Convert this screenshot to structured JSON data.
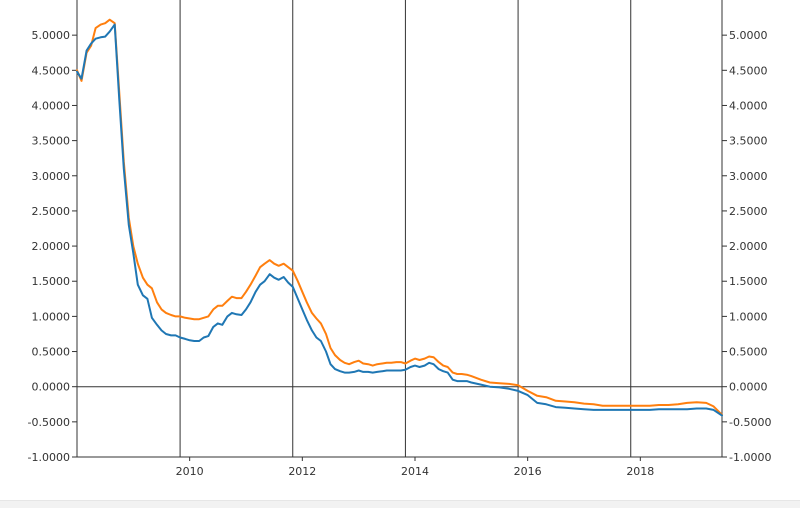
{
  "chart_data": {
    "type": "line",
    "title": "",
    "xlabel": "",
    "ylabel": "",
    "xlim": [
      2008.0,
      2019.45
    ],
    "ylim": [
      -1.0,
      5.5
    ],
    "x_ticks": [
      {
        "value": 2010,
        "label": "2010"
      },
      {
        "value": 2012,
        "label": "2012"
      },
      {
        "value": 2014,
        "label": "2014"
      },
      {
        "value": 2016,
        "label": "2016"
      },
      {
        "value": 2018,
        "label": "2018"
      }
    ],
    "x_grid": [
      2009.83,
      2011.83,
      2013.83,
      2015.83,
      2017.83
    ],
    "y_ticks": [
      {
        "value": 5.0,
        "label": "5.0000"
      },
      {
        "value": 4.5,
        "label": "4.5000"
      },
      {
        "value": 4.0,
        "label": "4.0000"
      },
      {
        "value": 3.5,
        "label": "3.5000"
      },
      {
        "value": 3.0,
        "label": "3.0000"
      },
      {
        "value": 2.5,
        "label": "2.5000"
      },
      {
        "value": 2.0,
        "label": "2.0000"
      },
      {
        "value": 1.5,
        "label": "1.5000"
      },
      {
        "value": 1.0,
        "label": "1.0000"
      },
      {
        "value": 0.5,
        "label": "0.5000"
      },
      {
        "value": 0.0,
        "label": "0.0000"
      },
      {
        "value": -0.5,
        "label": "-0.5000"
      },
      {
        "value": -1.0,
        "label": "-1.0000"
      }
    ],
    "grid": "vertical lines at x_grid plus horizontal zero line",
    "series": [
      {
        "color": "#ff7f0e",
        "x": [
          2008.0,
          2008.08,
          2008.17,
          2008.25,
          2008.33,
          2008.42,
          2008.5,
          2008.58,
          2008.67,
          2008.75,
          2008.83,
          2008.92,
          2009.0,
          2009.08,
          2009.17,
          2009.25,
          2009.33,
          2009.42,
          2009.5,
          2009.58,
          2009.67,
          2009.75,
          2009.83,
          2009.92,
          2010.0,
          2010.08,
          2010.17,
          2010.25,
          2010.33,
          2010.42,
          2010.5,
          2010.58,
          2010.67,
          2010.75,
          2010.83,
          2010.92,
          2011.0,
          2011.08,
          2011.17,
          2011.25,
          2011.33,
          2011.42,
          2011.5,
          2011.58,
          2011.67,
          2011.75,
          2011.83,
          2011.92,
          2012.0,
          2012.08,
          2012.17,
          2012.25,
          2012.33,
          2012.42,
          2012.5,
          2012.58,
          2012.67,
          2012.75,
          2012.83,
          2012.92,
          2013.0,
          2013.08,
          2013.17,
          2013.25,
          2013.33,
          2013.42,
          2013.5,
          2013.58,
          2013.67,
          2013.75,
          2013.83,
          2013.92,
          2014.0,
          2014.08,
          2014.17,
          2014.25,
          2014.33,
          2014.42,
          2014.5,
          2014.58,
          2014.67,
          2014.75,
          2014.83,
          2014.92,
          2015.0,
          2015.17,
          2015.33,
          2015.5,
          2015.67,
          2015.83,
          2016.0,
          2016.17,
          2016.33,
          2016.5,
          2016.67,
          2016.83,
          2017.0,
          2017.17,
          2017.33,
          2017.5,
          2017.67,
          2017.83,
          2018.0,
          2018.17,
          2018.33,
          2018.5,
          2018.67,
          2018.83,
          2019.0,
          2019.17,
          2019.3,
          2019.45
        ],
        "y": [
          4.5,
          4.35,
          4.75,
          4.85,
          5.1,
          5.15,
          5.17,
          5.22,
          5.17,
          4.2,
          3.2,
          2.4,
          2.0,
          1.75,
          1.55,
          1.45,
          1.4,
          1.2,
          1.1,
          1.05,
          1.02,
          1.0,
          1.0,
          0.98,
          0.97,
          0.96,
          0.96,
          0.98,
          1.0,
          1.1,
          1.15,
          1.15,
          1.22,
          1.28,
          1.26,
          1.26,
          1.35,
          1.45,
          1.58,
          1.7,
          1.75,
          1.8,
          1.75,
          1.72,
          1.75,
          1.7,
          1.65,
          1.5,
          1.35,
          1.2,
          1.05,
          0.97,
          0.9,
          0.75,
          0.55,
          0.45,
          0.38,
          0.34,
          0.32,
          0.35,
          0.37,
          0.33,
          0.32,
          0.3,
          0.32,
          0.33,
          0.34,
          0.34,
          0.35,
          0.35,
          0.33,
          0.37,
          0.4,
          0.38,
          0.4,
          0.43,
          0.42,
          0.35,
          0.3,
          0.28,
          0.2,
          0.18,
          0.18,
          0.17,
          0.15,
          0.1,
          0.06,
          0.05,
          0.04,
          0.02,
          -0.06,
          -0.13,
          -0.15,
          -0.2,
          -0.21,
          -0.22,
          -0.24,
          -0.25,
          -0.27,
          -0.27,
          -0.27,
          -0.27,
          -0.27,
          -0.27,
          -0.26,
          -0.26,
          -0.25,
          -0.23,
          -0.22,
          -0.23,
          -0.28,
          -0.4
        ]
      },
      {
        "color": "#1f77b4",
        "x": [
          2008.0,
          2008.08,
          2008.17,
          2008.25,
          2008.33,
          2008.42,
          2008.5,
          2008.58,
          2008.67,
          2008.75,
          2008.83,
          2008.92,
          2009.0,
          2009.08,
          2009.17,
          2009.25,
          2009.33,
          2009.42,
          2009.5,
          2009.58,
          2009.67,
          2009.75,
          2009.83,
          2009.92,
          2010.0,
          2010.08,
          2010.17,
          2010.25,
          2010.33,
          2010.42,
          2010.5,
          2010.58,
          2010.67,
          2010.75,
          2010.83,
          2010.92,
          2011.0,
          2011.08,
          2011.17,
          2011.25,
          2011.33,
          2011.42,
          2011.5,
          2011.58,
          2011.67,
          2011.75,
          2011.83,
          2011.92,
          2012.0,
          2012.08,
          2012.17,
          2012.25,
          2012.33,
          2012.42,
          2012.5,
          2012.58,
          2012.67,
          2012.75,
          2012.83,
          2012.92,
          2013.0,
          2013.08,
          2013.17,
          2013.25,
          2013.33,
          2013.42,
          2013.5,
          2013.58,
          2013.67,
          2013.75,
          2013.83,
          2013.92,
          2014.0,
          2014.08,
          2014.17,
          2014.25,
          2014.33,
          2014.42,
          2014.5,
          2014.58,
          2014.67,
          2014.75,
          2014.83,
          2014.92,
          2015.0,
          2015.17,
          2015.33,
          2015.5,
          2015.67,
          2015.83,
          2016.0,
          2016.17,
          2016.33,
          2016.5,
          2016.67,
          2016.83,
          2017.0,
          2017.17,
          2017.33,
          2017.5,
          2017.67,
          2017.83,
          2018.0,
          2018.17,
          2018.33,
          2018.5,
          2018.67,
          2018.83,
          2019.0,
          2019.17,
          2019.3,
          2019.45
        ],
        "y": [
          4.48,
          4.38,
          4.78,
          4.88,
          4.95,
          4.97,
          4.98,
          5.05,
          5.15,
          4.1,
          3.1,
          2.3,
          1.9,
          1.45,
          1.3,
          1.25,
          0.98,
          0.88,
          0.8,
          0.75,
          0.73,
          0.73,
          0.7,
          0.68,
          0.66,
          0.65,
          0.65,
          0.7,
          0.72,
          0.85,
          0.9,
          0.88,
          1.0,
          1.05,
          1.03,
          1.02,
          1.1,
          1.2,
          1.35,
          1.45,
          1.5,
          1.6,
          1.55,
          1.52,
          1.56,
          1.48,
          1.42,
          1.25,
          1.1,
          0.95,
          0.8,
          0.7,
          0.65,
          0.5,
          0.32,
          0.25,
          0.22,
          0.2,
          0.2,
          0.21,
          0.23,
          0.21,
          0.21,
          0.2,
          0.21,
          0.22,
          0.23,
          0.23,
          0.23,
          0.23,
          0.24,
          0.28,
          0.3,
          0.28,
          0.3,
          0.34,
          0.32,
          0.25,
          0.22,
          0.2,
          0.1,
          0.08,
          0.08,
          0.08,
          0.06,
          0.03,
          0.0,
          -0.01,
          -0.03,
          -0.06,
          -0.12,
          -0.23,
          -0.25,
          -0.29,
          -0.3,
          -0.31,
          -0.32,
          -0.33,
          -0.33,
          -0.33,
          -0.33,
          -0.33,
          -0.33,
          -0.33,
          -0.32,
          -0.32,
          -0.32,
          -0.32,
          -0.31,
          -0.31,
          -0.33,
          -0.41
        ]
      }
    ]
  }
}
